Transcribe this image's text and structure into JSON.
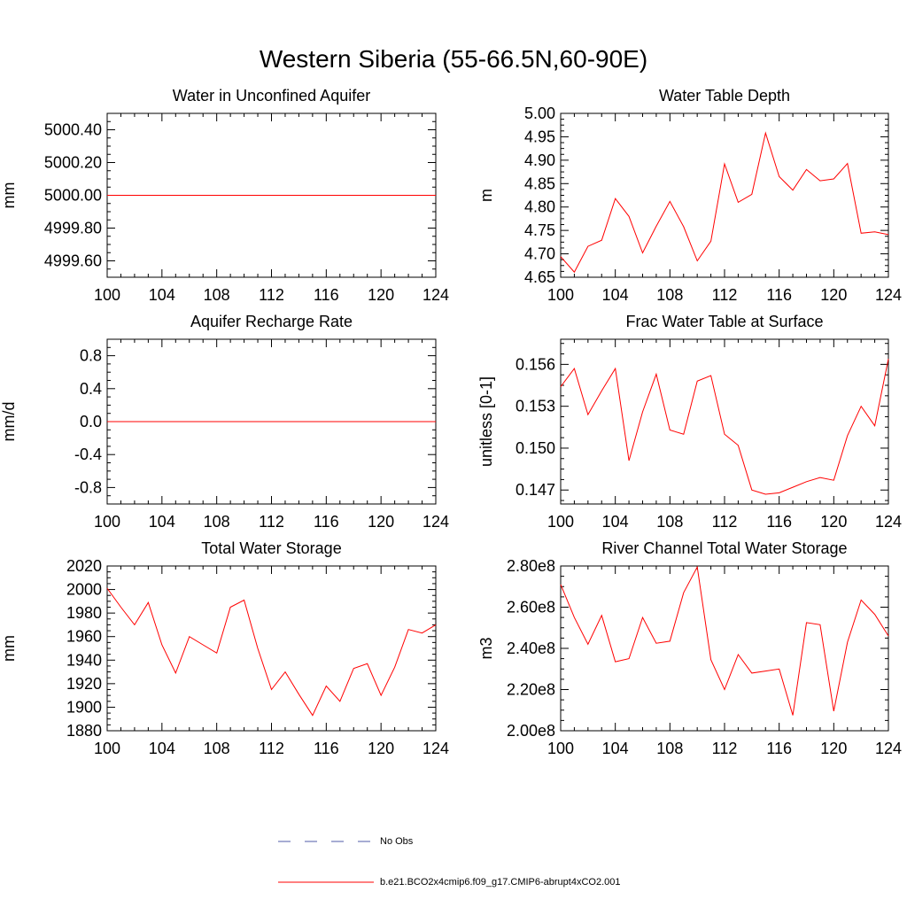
{
  "title": "Western Siberia (55-66.5N,60-90E)",
  "legend": [
    {
      "label": "No Obs",
      "color": "#4f5ba8",
      "style": "dashed"
    },
    {
      "label": "b.e21.BCO2x4cmip6.f09_g17.CMIP6-abrupt4xCO2.001",
      "color": "#ff0000",
      "style": "solid"
    }
  ],
  "chart_data": [
    {
      "type": "line",
      "title": "Water in Unconfined Aquifer",
      "ylabel": "mm",
      "xlim": [
        100,
        124
      ],
      "ylim": [
        4999.5,
        5000.5
      ],
      "xticks": [
        "100",
        "104",
        "108",
        "112",
        "116",
        "120",
        "124"
      ],
      "yticks": [
        {
          "v": 4999.6,
          "label": "4999.60"
        },
        {
          "v": 4999.8,
          "label": "4999.80"
        },
        {
          "v": 5000.0,
          "label": "5000.00"
        },
        {
          "v": 5000.2,
          "label": "5000.20"
        },
        {
          "v": 5000.4,
          "label": "5000.40"
        }
      ],
      "series": [
        {
          "color": "#ff0000",
          "x": [
            100,
            101,
            102,
            103,
            104,
            105,
            106,
            107,
            108,
            109,
            110,
            111,
            112,
            113,
            114,
            115,
            116,
            117,
            118,
            119,
            120,
            121,
            122,
            123,
            124
          ],
          "values": [
            5000,
            5000,
            5000,
            5000,
            5000,
            5000,
            5000,
            5000,
            5000,
            5000,
            5000,
            5000,
            5000,
            5000,
            5000,
            5000,
            5000,
            5000,
            5000,
            5000,
            5000,
            5000,
            5000,
            5000,
            5000
          ]
        }
      ]
    },
    {
      "type": "line",
      "title": "Water Table Depth",
      "ylabel": "m",
      "xlim": [
        100,
        124
      ],
      "ylim": [
        4.65,
        5.0
      ],
      "xticks": [
        "100",
        "104",
        "108",
        "112",
        "116",
        "120",
        "124"
      ],
      "yticks": [
        {
          "v": 4.65,
          "label": "4.65"
        },
        {
          "v": 4.7,
          "label": "4.70"
        },
        {
          "v": 4.75,
          "label": "4.75"
        },
        {
          "v": 4.8,
          "label": "4.80"
        },
        {
          "v": 4.85,
          "label": "4.85"
        },
        {
          "v": 4.9,
          "label": "4.90"
        },
        {
          "v": 4.95,
          "label": "4.95"
        },
        {
          "v": 5.0,
          "label": "5.00"
        }
      ],
      "series": [
        {
          "color": "#ff0000",
          "x": [
            100,
            101,
            102,
            103,
            104,
            105,
            106,
            107,
            108,
            109,
            110,
            111,
            112,
            113,
            114,
            115,
            116,
            117,
            118,
            119,
            120,
            121,
            122,
            123,
            124
          ],
          "values": [
            4.694,
            4.661,
            4.716,
            4.729,
            4.818,
            4.78,
            4.702,
            4.759,
            4.812,
            4.758,
            4.685,
            4.727,
            4.892,
            4.81,
            4.827,
            4.958,
            4.865,
            4.836,
            4.88,
            4.856,
            4.86,
            4.893,
            4.744,
            4.747,
            4.741
          ]
        }
      ]
    },
    {
      "type": "line",
      "title": "Aquifer Recharge Rate",
      "ylabel": "mm/d",
      "xlim": [
        100,
        124
      ],
      "ylim": [
        -1.0,
        1.0
      ],
      "xticks": [
        "100",
        "104",
        "108",
        "112",
        "116",
        "120",
        "124"
      ],
      "yticks": [
        {
          "v": -0.8,
          "label": "-0.8"
        },
        {
          "v": -0.4,
          "label": "-0.4"
        },
        {
          "v": 0.0,
          "label": "0.0"
        },
        {
          "v": 0.4,
          "label": "0.4"
        },
        {
          "v": 0.8,
          "label": "0.8"
        }
      ],
      "series": [
        {
          "color": "#ff0000",
          "x": [
            100,
            101,
            102,
            103,
            104,
            105,
            106,
            107,
            108,
            109,
            110,
            111,
            112,
            113,
            114,
            115,
            116,
            117,
            118,
            119,
            120,
            121,
            122,
            123,
            124
          ],
          "values": [
            0,
            0,
            0,
            0,
            0,
            0,
            0,
            0,
            0,
            0,
            0,
            0,
            0,
            0,
            0,
            0,
            0,
            0,
            0,
            0,
            0,
            0,
            0,
            0,
            0
          ]
        }
      ]
    },
    {
      "type": "line",
      "title": "Frac Water Table at Surface",
      "ylabel": "unitless [0-1]",
      "xlim": [
        100,
        124
      ],
      "ylim": [
        0.146,
        0.1578
      ],
      "xticks": [
        "100",
        "104",
        "108",
        "112",
        "116",
        "120",
        "124"
      ],
      "yticks": [
        {
          "v": 0.147,
          "label": "0.147"
        },
        {
          "v": 0.15,
          "label": "0.150"
        },
        {
          "v": 0.153,
          "label": "0.153"
        },
        {
          "v": 0.156,
          "label": "0.156"
        }
      ],
      "series": [
        {
          "color": "#ff0000",
          "x": [
            100,
            101,
            102,
            103,
            104,
            105,
            106,
            107,
            108,
            109,
            110,
            111,
            112,
            113,
            114,
            115,
            116,
            117,
            118,
            119,
            120,
            121,
            122,
            123,
            124
          ],
          "values": [
            0.1544,
            0.1557,
            0.1524,
            0.1541,
            0.1557,
            0.1491,
            0.1526,
            0.1553,
            0.1513,
            0.151,
            0.1548,
            0.1552,
            0.151,
            0.1502,
            0.147,
            0.1467,
            0.1468,
            0.1472,
            0.1476,
            0.1479,
            0.1477,
            0.1509,
            0.153,
            0.1516,
            0.1564
          ]
        }
      ]
    },
    {
      "type": "line",
      "title": "Total Water Storage",
      "ylabel": "mm",
      "xlim": [
        100,
        124
      ],
      "ylim": [
        1880,
        2020
      ],
      "xticks": [
        "100",
        "104",
        "108",
        "112",
        "116",
        "120",
        "124"
      ],
      "yticks": [
        {
          "v": 1880,
          "label": "1880"
        },
        {
          "v": 1900,
          "label": "1900"
        },
        {
          "v": 1920,
          "label": "1920"
        },
        {
          "v": 1940,
          "label": "1940"
        },
        {
          "v": 1960,
          "label": "1960"
        },
        {
          "v": 1980,
          "label": "1980"
        },
        {
          "v": 2000,
          "label": "2000"
        },
        {
          "v": 2020,
          "label": "2020"
        }
      ],
      "series": [
        {
          "color": "#ff0000",
          "x": [
            100,
            101,
            102,
            103,
            104,
            105,
            106,
            107,
            108,
            109,
            110,
            111,
            112,
            113,
            114,
            115,
            116,
            117,
            118,
            119,
            120,
            121,
            122,
            123,
            124
          ],
          "values": [
            2001,
            1985,
            1970,
            1989,
            1953,
            1929,
            1960,
            1953,
            1946,
            1985,
            1991,
            1950,
            1915,
            1930,
            1911,
            1893,
            1918,
            1905,
            1933,
            1937,
            1910,
            1934,
            1966,
            1963,
            1970
          ]
        }
      ]
    },
    {
      "type": "line",
      "title": "River Channel Total Water Storage",
      "ylabel": "m3",
      "xlim": [
        100,
        124
      ],
      "ylim": [
        200000000,
        280000000
      ],
      "xticks": [
        "100",
        "104",
        "108",
        "112",
        "116",
        "120",
        "124"
      ],
      "yticks": [
        {
          "v": 200000000,
          "label": "2.00e8"
        },
        {
          "v": 220000000,
          "label": "2.20e8"
        },
        {
          "v": 240000000,
          "label": "2.40e8"
        },
        {
          "v": 260000000,
          "label": "2.60e8"
        },
        {
          "v": 280000000,
          "label": "2.80e8"
        }
      ],
      "series": [
        {
          "color": "#ff0000",
          "x": [
            100,
            101,
            102,
            103,
            104,
            105,
            106,
            107,
            108,
            109,
            110,
            111,
            112,
            113,
            114,
            115,
            116,
            117,
            118,
            119,
            120,
            121,
            122,
            123,
            124
          ],
          "values": [
            271000000,
            255000000,
            242000000,
            256000000,
            233500000,
            235000000,
            255000000,
            242500000,
            243500000,
            267000000,
            279500000,
            234500000,
            220000000,
            237000000,
            228000000,
            229000000,
            230000000,
            207500000,
            252500000,
            251500000,
            209500000,
            243000000,
            263500000,
            256500000,
            246000000
          ]
        }
      ]
    }
  ]
}
